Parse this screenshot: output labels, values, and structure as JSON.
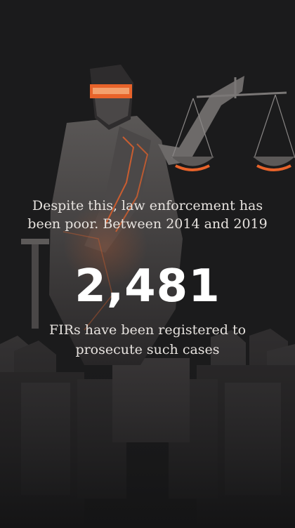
{
  "story": {
    "lead_text": "Despite this, law enforcement has been poor. Between 2014 and 2019",
    "stat_value": "2,481",
    "follow_text": "FIRs have been registered to prosecute such cases"
  },
  "colors": {
    "background": "#1b1b1c",
    "accent": "#e8632a",
    "text": "#e7e3df"
  }
}
